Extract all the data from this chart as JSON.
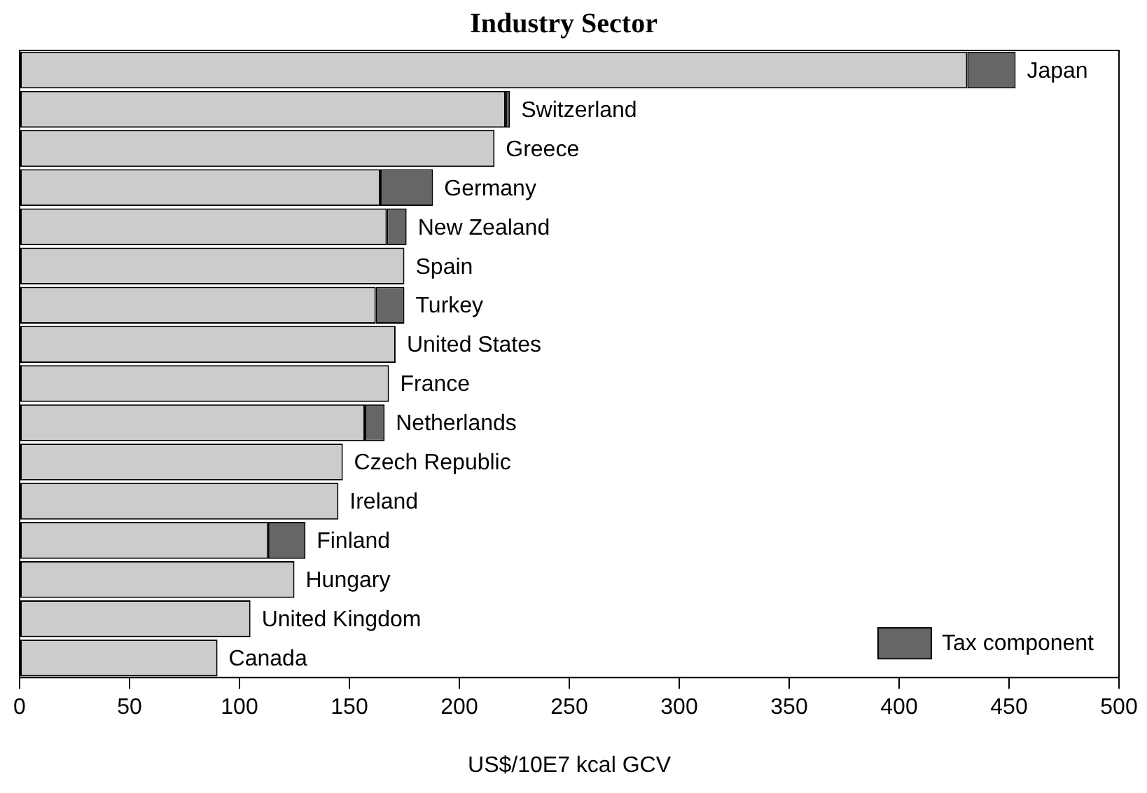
{
  "chart_data": {
    "type": "bar",
    "orientation": "horizontal",
    "stacked": true,
    "title": "Industry Sector",
    "xlabel": "US$/10E7 kcal GCV",
    "categories": [
      "Japan",
      "Switzerland",
      "Greece",
      "Germany",
      "New Zealand",
      "Spain",
      "Turkey",
      "United States",
      "France",
      "Netherlands",
      "Czech Republic",
      "Ireland",
      "Finland",
      "Hungary",
      "United Kingdom",
      "Canada"
    ],
    "series": [
      {
        "color": "#cccccc",
        "values": [
          431,
          221,
          216,
          164,
          167,
          175,
          162,
          171,
          168,
          157,
          147,
          145,
          113,
          125,
          105,
          90
        ]
      },
      {
        "name": "Tax component",
        "color": "#666666",
        "values": [
          22,
          2,
          null,
          24,
          9,
          null,
          13,
          null,
          null,
          9,
          null,
          null,
          17,
          null,
          null,
          null
        ]
      }
    ],
    "xlim": [
      0,
      500
    ],
    "xticks": [
      0,
      50,
      100,
      150,
      200,
      250,
      300,
      350,
      400,
      450,
      500
    ],
    "grid": false,
    "legend": "bottom right",
    "tick_labels": "x"
  }
}
